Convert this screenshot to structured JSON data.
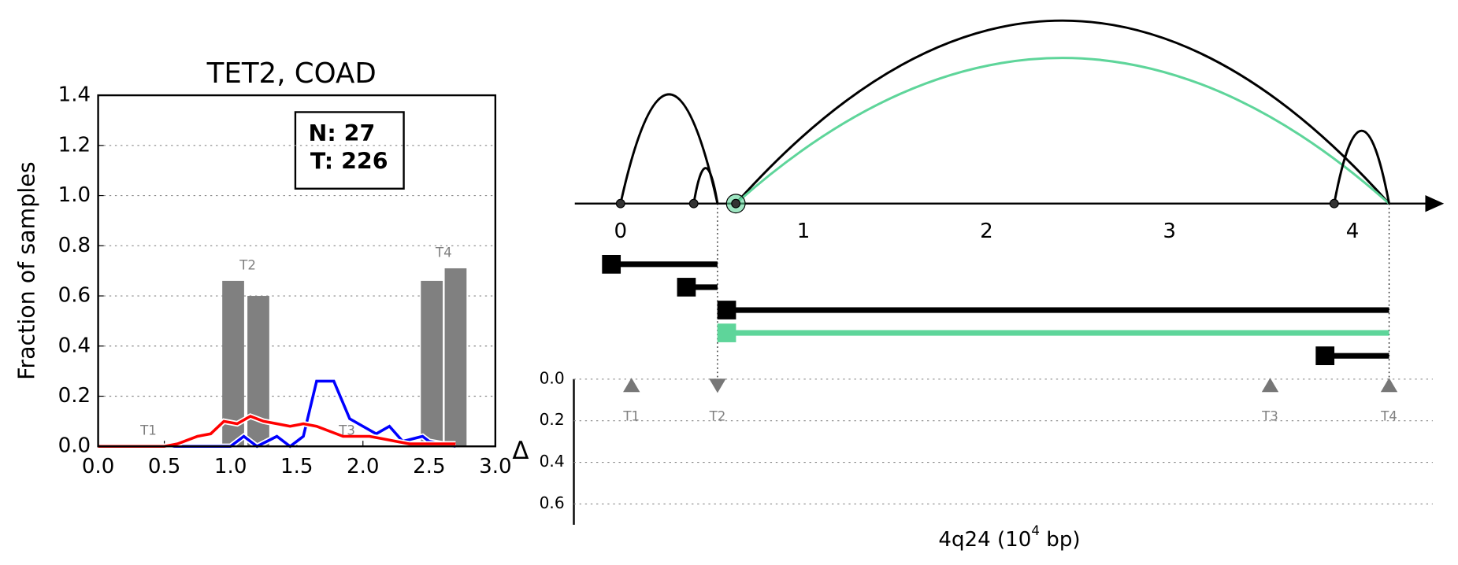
{
  "chart_data": [
    {
      "type": "bar",
      "title": "TET2, COAD",
      "ylabel": "Fraction of samples",
      "xlim": [
        0,
        3
      ],
      "ylim": [
        0,
        1.4
      ],
      "xticks": [
        {
          "value": 0,
          "label": "0.0"
        },
        {
          "value": 0.5,
          "label": "0.5"
        },
        {
          "value": 1,
          "label": "1.0"
        },
        {
          "value": 1.5,
          "label": "1.5"
        },
        {
          "value": 2,
          "label": "2.0"
        },
        {
          "value": 2.5,
          "label": "2.5"
        },
        {
          "value": 3,
          "label": "3.0"
        }
      ],
      "yticks": [
        {
          "value": 0,
          "label": "0.0"
        },
        0.2,
        0.4,
        0.6,
        0.8,
        {
          "value": 1,
          "label": "1.0"
        },
        1.2,
        1.4
      ],
      "grid": true,
      "annotation": [
        "N: 27",
        "T: 226"
      ],
      "bars": {
        "color": "#808080",
        "x": [
          1.02,
          1.21,
          2.52,
          2.7
        ],
        "values": [
          0.66,
          0.6,
          0.66,
          0.71
        ]
      },
      "series": [
        {
          "color": "#0000ff",
          "x": [
            0,
            0.6,
            0.9,
            1.0,
            1.1,
            1.2,
            1.35,
            1.45,
            1.55,
            1.65,
            1.78,
            1.9,
            2.0,
            2.1,
            2.2,
            2.3,
            2.45,
            2.5,
            2.6,
            2.7
          ],
          "values": [
            0,
            0,
            0,
            0,
            0.04,
            0,
            0.04,
            0,
            0.04,
            0.26,
            0.26,
            0.11,
            0.08,
            0.05,
            0.08,
            0.02,
            0.04,
            0.02,
            0.01,
            0
          ]
        },
        {
          "color": "#ff0000",
          "x": [
            0,
            0.5,
            0.6,
            0.75,
            0.85,
            0.95,
            1.05,
            1.15,
            1.25,
            1.35,
            1.45,
            1.55,
            1.65,
            1.75,
            1.85,
            1.95,
            2.05,
            2.15,
            2.25,
            2.35,
            2.45,
            2.55,
            2.7
          ],
          "values": [
            0,
            0,
            0.01,
            0.04,
            0.05,
            0.1,
            0.09,
            0.12,
            0.1,
            0.09,
            0.08,
            0.09,
            0.08,
            0.06,
            0.04,
            0.04,
            0.04,
            0.03,
            0.02,
            0.01,
            0.01,
            0.01,
            0.01
          ]
        }
      ],
      "markers": [
        {
          "label": "T1",
          "x": 0.38
        },
        {
          "label": "T2",
          "x": 1.13
        },
        {
          "label": "T3",
          "x": 1.88
        },
        {
          "label": "T4",
          "x": 2.61
        }
      ]
    },
    {
      "type": "arc",
      "xlim": [
        -0.25,
        4.5
      ],
      "xticks": [
        0,
        1,
        2,
        3,
        4
      ],
      "points": [
        0,
        0.4,
        0.63,
        3.9
      ],
      "arcs": [
        {
          "start": 0,
          "end": 0.53,
          "color": "#000000"
        },
        {
          "start": 0.4,
          "end": 0.53,
          "color": "#000000"
        },
        {
          "start": 0.63,
          "end": 4.2,
          "color": "#000000"
        },
        {
          "start": 0.63,
          "end": 4.2,
          "color": "#5ed59a"
        },
        {
          "start": 3.9,
          "end": 4.2,
          "color": "#000000"
        }
      ],
      "segments": [
        {
          "start": -0.05,
          "end": 0.53,
          "color": "#000000"
        },
        {
          "start": 0.36,
          "end": 0.53,
          "color": "#000000"
        },
        {
          "start": 0.58,
          "end": 4.2,
          "color": "#000000"
        },
        {
          "start": 0.58,
          "end": 4.2,
          "color": "#5ed59a"
        },
        {
          "start": 3.85,
          "end": 4.2,
          "color": "#000000"
        }
      ],
      "ylabel": "Δ",
      "ylim": [
        0,
        0.7
      ],
      "yticks": [
        {
          "value": 0,
          "label": "0.0"
        },
        0.2,
        0.4,
        0.6
      ],
      "triangles": [
        {
          "label": "T1",
          "x": 0.06,
          "y": 0.03,
          "dir": "up"
        },
        {
          "label": "T2",
          "x": 0.53,
          "y": 0.03,
          "dir": "down"
        },
        {
          "label": "T3",
          "x": 3.55,
          "y": 0.03,
          "dir": "up"
        },
        {
          "label": "T4",
          "x": 4.2,
          "y": 0.03,
          "dir": "up"
        }
      ],
      "xlabel": {
        "text": "4q24 (10",
        "sup": "4",
        "tail": " bp)"
      }
    }
  ]
}
